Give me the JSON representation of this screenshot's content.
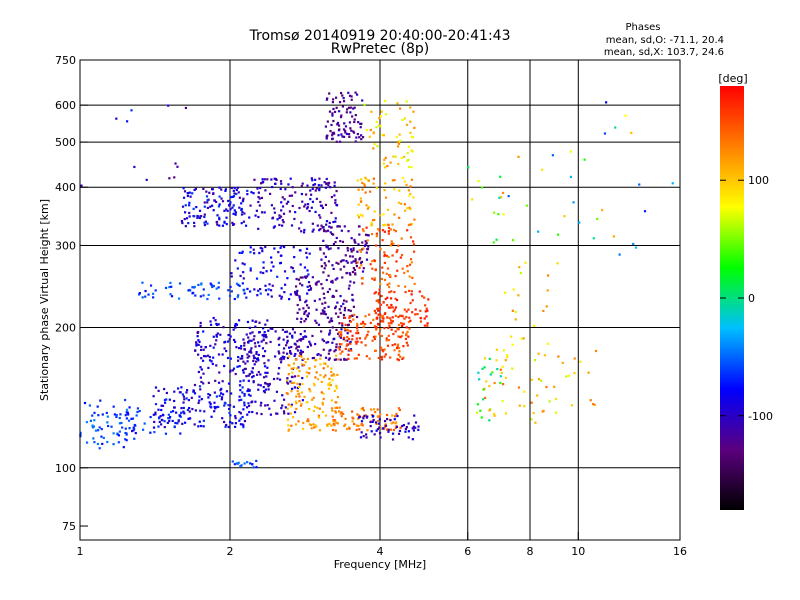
{
  "chart_data": {
    "type": "scatter",
    "title": "Tromsø 20140919 20:40:00-20:41:43",
    "subtitle": "RwPretec (8p)",
    "xlabel": "Frequency [MHz]",
    "ylabel": "Stationary phase Virtual Height [km]",
    "x_scale": "log",
    "y_scale": "log",
    "xlim": [
      1,
      16
    ],
    "ylim": [
      70,
      750
    ],
    "x_ticks": [
      1,
      2,
      4,
      6,
      8,
      10,
      16
    ],
    "y_ticks": [
      75,
      100,
      200,
      300,
      400,
      500,
      600,
      750
    ],
    "grid": true,
    "stats": {
      "heading": "Phases",
      "line_o": "mean, sd,O: -71.1, 20.4",
      "line_x": "mean, sd,X: 103.7, 24.6"
    },
    "colorbar": {
      "label": "[deg]",
      "range": [
        -180,
        180
      ],
      "ticks": [
        100,
        0,
        -100
      ],
      "colors": [
        "#000000",
        "#5b007f",
        "#0000ff",
        "#00bfff",
        "#00ff00",
        "#ffff00",
        "#ff8000",
        "#ff0000"
      ]
    },
    "clusters": [
      {
        "f": [
          1.0,
          1.3
        ],
        "h": [
          110,
          140
        ],
        "phase": [
          -80,
          -40
        ],
        "n": 70
      },
      {
        "f": [
          1.2,
          1.6
        ],
        "h": [
          118,
          135
        ],
        "phase": [
          -90,
          -50
        ],
        "n": 40
      },
      {
        "f": [
          1.4,
          2.2
        ],
        "h": [
          122,
          150
        ],
        "phase": [
          -110,
          -60
        ],
        "n": 150
      },
      {
        "f": [
          1.7,
          2.4
        ],
        "h": [
          150,
          210
        ],
        "phase": [
          -120,
          -70
        ],
        "n": 160
      },
      {
        "f": [
          2.1,
          2.8
        ],
        "h": [
          130,
          200
        ],
        "phase": [
          -120,
          -80
        ],
        "n": 140
      },
      {
        "f": [
          1.3,
          2.2
        ],
        "h": [
          230,
          250
        ],
        "phase": [
          -80,
          -40
        ],
        "n": 60
      },
      {
        "f": [
          1.6,
          2.2
        ],
        "h": [
          330,
          400
        ],
        "phase": [
          -120,
          -60
        ],
        "n": 130
      },
      {
        "f": [
          2.2,
          3.3
        ],
        "h": [
          320,
          420
        ],
        "phase": [
          -130,
          -80
        ],
        "n": 150
      },
      {
        "f": [
          2.0,
          2.9
        ],
        "h": [
          230,
          300
        ],
        "phase": [
          -110,
          -60
        ],
        "n": 90
      },
      {
        "f": [
          2.7,
          3.6
        ],
        "h": [
          200,
          260
        ],
        "phase": [
          -140,
          -100
        ],
        "n": 120
      },
      {
        "f": [
          3.0,
          3.8
        ],
        "h": [
          260,
          330
        ],
        "phase": [
          -140,
          -100
        ],
        "n": 100
      },
      {
        "f": [
          3.1,
          3.7
        ],
        "h": [
          500,
          640
        ],
        "phase": [
          -140,
          -100
        ],
        "n": 90
      },
      {
        "f": [
          2.5,
          3.5
        ],
        "h": [
          170,
          200
        ],
        "phase": [
          -130,
          -90
        ],
        "n": 90
      },
      {
        "f": [
          2.6,
          3.3
        ],
        "h": [
          120,
          175
        ],
        "phase": [
          90,
          140
        ],
        "n": 140
      },
      {
        "f": [
          3.2,
          4.4
        ],
        "h": [
          120,
          135
        ],
        "phase": [
          110,
          150
        ],
        "n": 80
      },
      {
        "f": [
          3.3,
          4.6
        ],
        "h": [
          170,
          215
        ],
        "phase": [
          130,
          170
        ],
        "n": 150
      },
      {
        "f": [
          3.9,
          5.0
        ],
        "h": [
          200,
          240
        ],
        "phase": [
          150,
          175
        ],
        "n": 90
      },
      {
        "f": [
          3.6,
          4.7
        ],
        "h": [
          240,
          330
        ],
        "phase": [
          120,
          170
        ],
        "n": 90
      },
      {
        "f": [
          3.6,
          4.7
        ],
        "h": [
          330,
          420
        ],
        "phase": [
          80,
          140
        ],
        "n": 70
      },
      {
        "f": [
          3.7,
          4.7
        ],
        "h": [
          440,
          620
        ],
        "phase": [
          60,
          130
        ],
        "n": 60
      },
      {
        "f": [
          3.6,
          4.8
        ],
        "h": [
          115,
          130
        ],
        "phase": [
          -120,
          -80
        ],
        "n": 60
      },
      {
        "f": [
          2.0,
          2.3
        ],
        "h": [
          100,
          104
        ],
        "phase": [
          -80,
          -40
        ],
        "n": 15
      },
      {
        "f": [
          6.2,
          7.0
        ],
        "h": [
          125,
          180
        ],
        "phase": [
          -20,
          140
        ],
        "n": 30
      },
      {
        "f": [
          7.0,
          8.8
        ],
        "h": [
          125,
          300
        ],
        "phase": [
          60,
          140
        ],
        "n": 40
      },
      {
        "f": [
          8.0,
          11.0
        ],
        "h": [
          130,
          180
        ],
        "phase": [
          60,
          140
        ],
        "n": 25
      },
      {
        "f": [
          6.0,
          12.0
        ],
        "h": [
          300,
          480
        ],
        "phase": [
          -60,
          140
        ],
        "n": 25
      },
      {
        "f": [
          9.0,
          15.5
        ],
        "h": [
          270,
          620
        ],
        "phase": [
          -90,
          140
        ],
        "n": 18
      },
      {
        "f": [
          1.0,
          1.9
        ],
        "h": [
          390,
          640
        ],
        "phase": [
          -140,
          -60
        ],
        "n": 12
      }
    ]
  }
}
